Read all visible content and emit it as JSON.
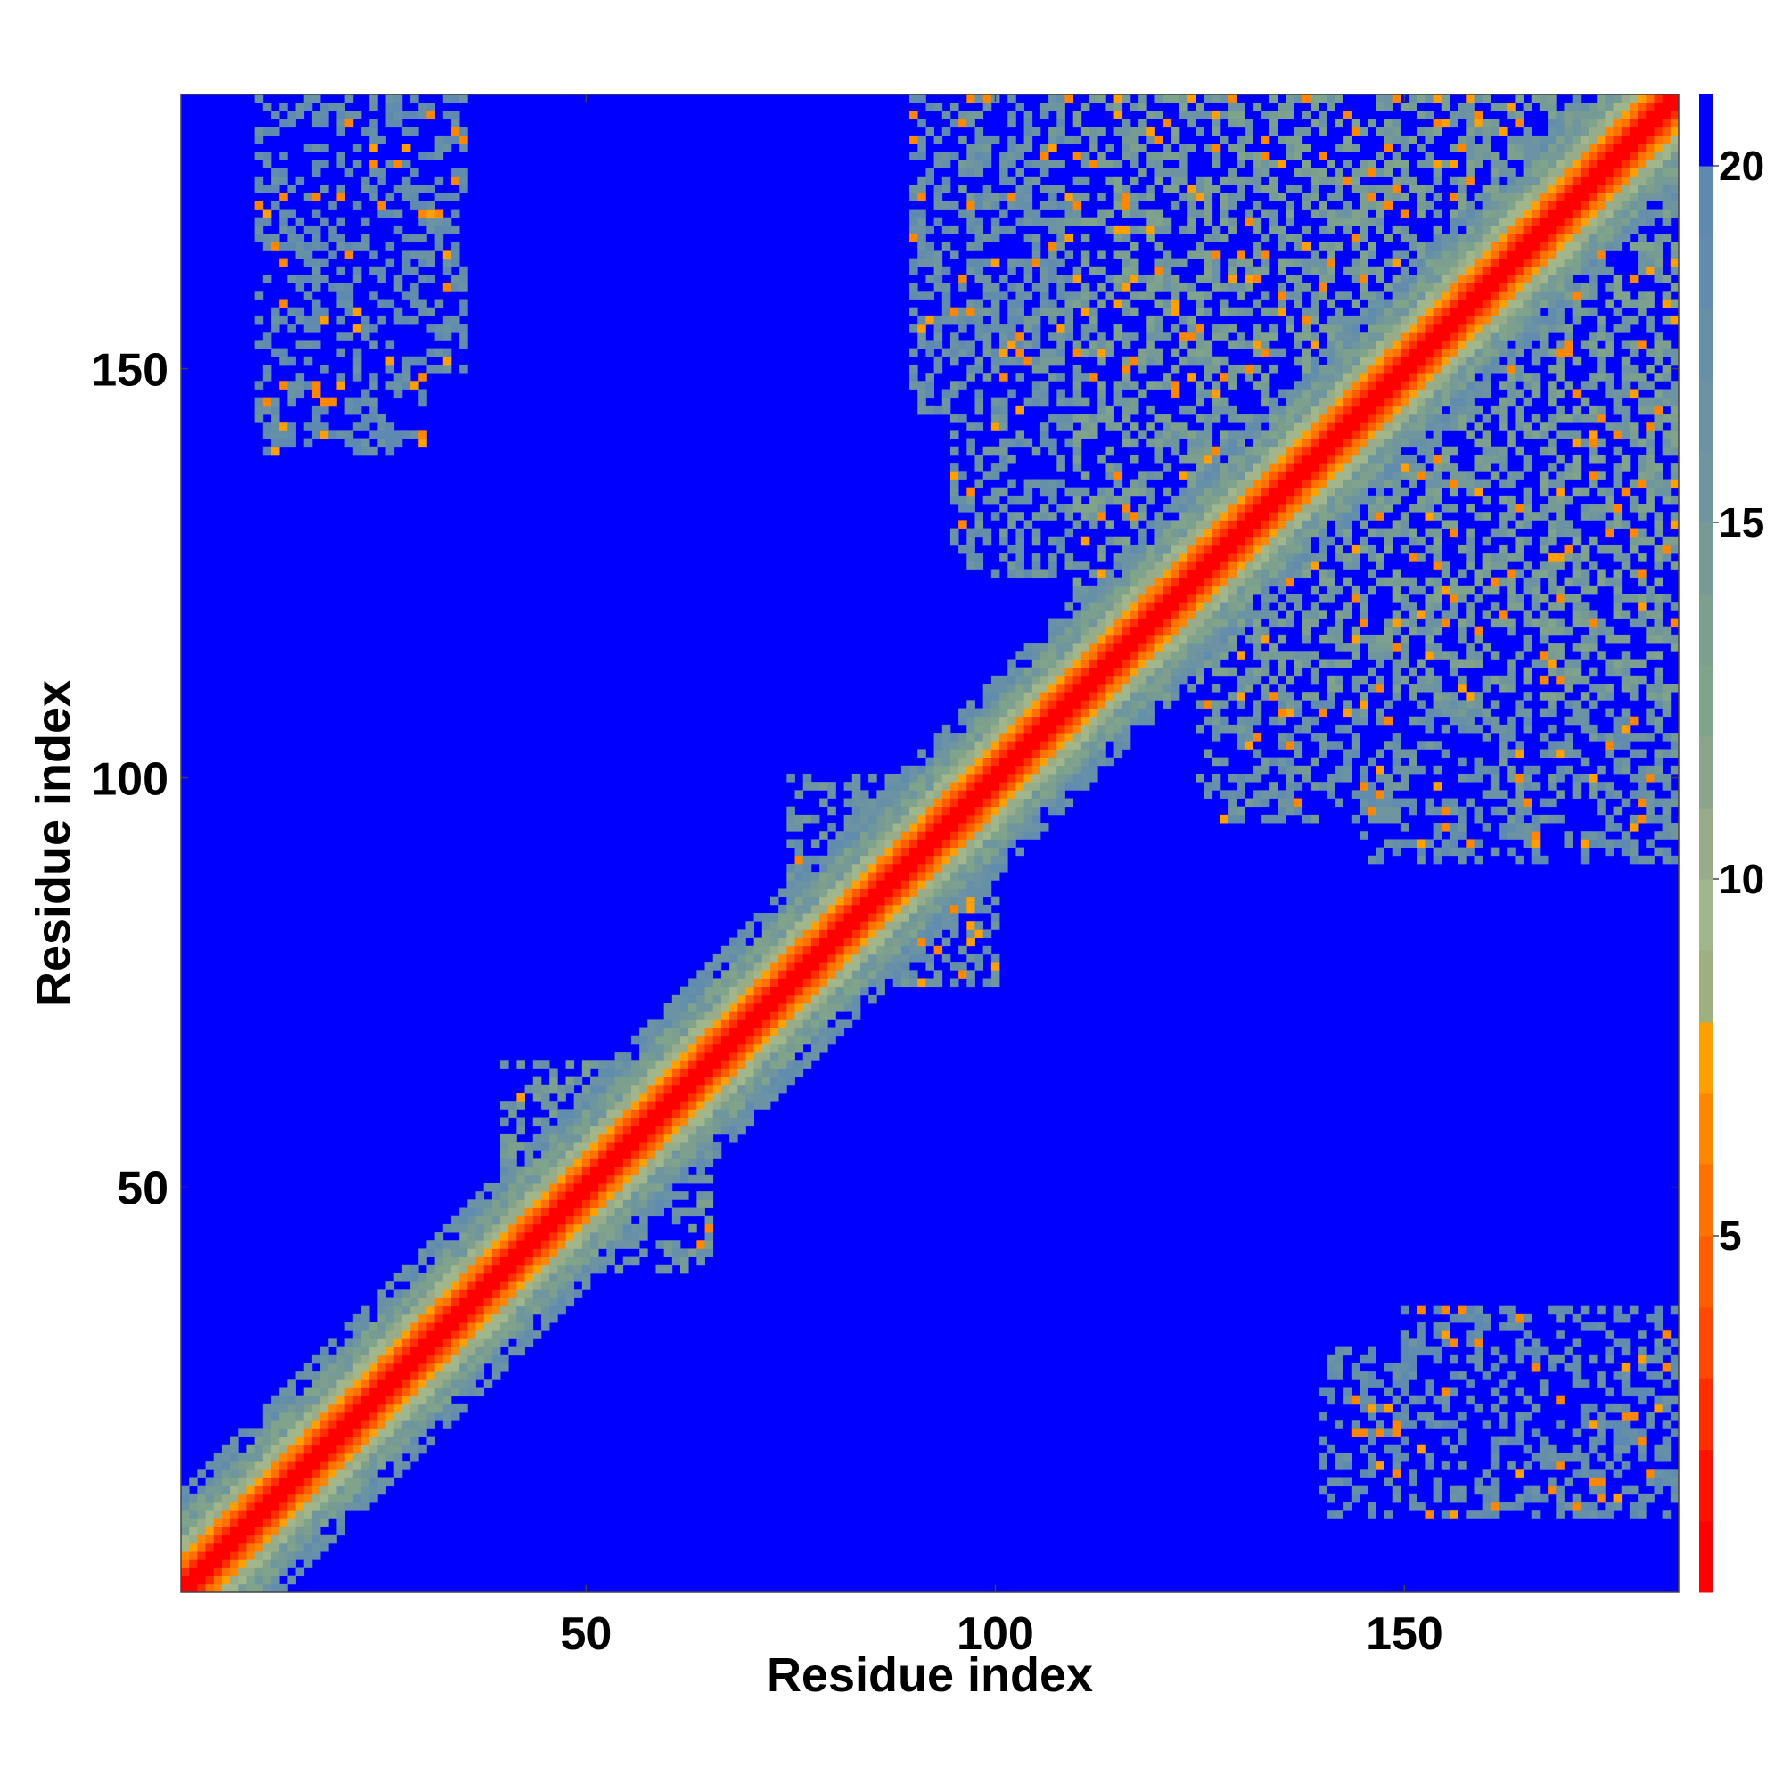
{
  "chart_data": {
    "type": "heatmap",
    "title": "",
    "xlabel": "Residue index",
    "ylabel": "Residue index",
    "n_residues": 183,
    "xlim": [
      0.5,
      183.5
    ],
    "ylim": [
      0.5,
      183.5
    ],
    "x_ticks": [
      50,
      100,
      150
    ],
    "y_ticks": [
      50,
      100,
      150
    ],
    "colorbar": {
      "range": [
        0,
        21
      ],
      "ticks": [
        5,
        10,
        15,
        20
      ],
      "bins": [
        {
          "from": 0,
          "to": 1,
          "color": "#ff0000"
        },
        {
          "from": 1,
          "to": 2,
          "color": "#ff1100"
        },
        {
          "from": 2,
          "to": 3,
          "color": "#ff2e00"
        },
        {
          "from": 3,
          "to": 4,
          "color": "#ff4800"
        },
        {
          "from": 4,
          "to": 5,
          "color": "#ff5d00"
        },
        {
          "from": 5,
          "to": 6,
          "color": "#ff7100"
        },
        {
          "from": 6,
          "to": 7,
          "color": "#ff8700"
        },
        {
          "from": 7,
          "to": 8,
          "color": "#ffa000"
        },
        {
          "from": 8,
          "to": 9,
          "color": "#9fb07f"
        },
        {
          "from": 9,
          "to": 10,
          "color": "#a2b68c"
        },
        {
          "from": 10,
          "to": 11,
          "color": "#97ac88"
        },
        {
          "from": 11,
          "to": 12,
          "color": "#8aa58a"
        },
        {
          "from": 12,
          "to": 13,
          "color": "#80a38c"
        },
        {
          "from": 13,
          "to": 14,
          "color": "#7c9f8e"
        },
        {
          "from": 14,
          "to": 15,
          "color": "#769a94"
        },
        {
          "from": 15,
          "to": 16,
          "color": "#6f969e"
        },
        {
          "from": 16,
          "to": 17,
          "color": "#6b93a3"
        },
        {
          "from": 17,
          "to": 18,
          "color": "#668fa8"
        },
        {
          "from": 18,
          "to": 19,
          "color": "#628cad"
        },
        {
          "from": 19,
          "to": 20,
          "color": "#5e89b1"
        },
        {
          "from": 20,
          "to": 21,
          "color": "#0000ff"
        }
      ]
    },
    "background_value": 21,
    "contact_clusters": [
      {
        "x": [
          2,
          172
        ],
        "y": [
          2,
          172
        ],
        "value": 0
      },
      {
        "x": [
          40,
          65
        ],
        "y": [
          40,
          65
        ],
        "value": 15
      },
      {
        "x": [
          75,
          100
        ],
        "y": [
          75,
          100
        ],
        "value": 16
      },
      {
        "x": [
          110,
          183
        ],
        "y": [
          110,
          183
        ],
        "value": 14
      },
      {
        "x": [
          97,
          118
        ],
        "y": [
          125,
          183
        ],
        "value": 16
      },
      {
        "x": [
          128,
          183
        ],
        "y": [
          95,
          130
        ],
        "value": 16
      },
      {
        "x": [
          145,
          183
        ],
        "y": [
          90,
          130
        ],
        "value": 17
      },
      {
        "x": [
          125,
          183
        ],
        "y": [
          140,
          183
        ],
        "value": 15
      },
      {
        "x": [
          10,
          30
        ],
        "y": [
          140,
          175
        ],
        "value": 18
      },
      {
        "x": [
          150,
          185
        ],
        "y": [
          10,
          35
        ],
        "value": 18
      }
    ]
  }
}
